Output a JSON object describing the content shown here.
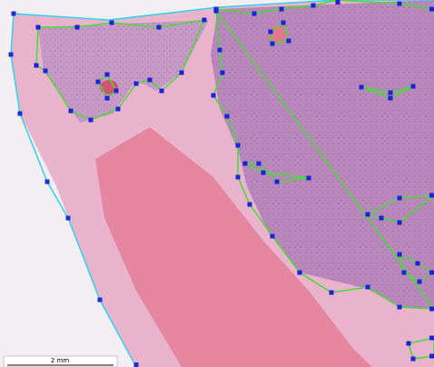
{
  "scale_bar": {
    "label": "2 mm"
  }
}
